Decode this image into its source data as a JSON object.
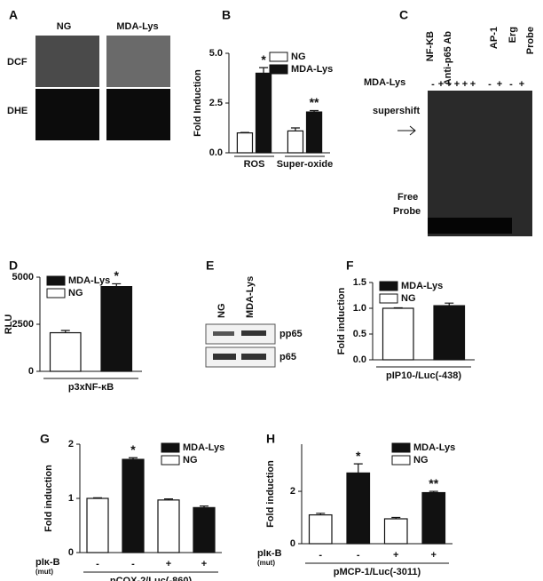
{
  "figures": {
    "A": {
      "panel": "A",
      "columns": [
        "NG",
        "MDA-Lys"
      ],
      "rows": [
        "DCF",
        "DHE"
      ]
    },
    "C": {
      "panel": "C",
      "row_label": "MDA-Lys",
      "lanes": [
        "NF-KB",
        "Anti-p65 Ab",
        "AP-1",
        "Erg",
        "Probe"
      ],
      "signs": [
        "-",
        "+",
        "+",
        "+",
        "+",
        "+",
        "-",
        "+",
        "-",
        "+"
      ],
      "bands": [
        "supershift",
        "Free",
        "Probe"
      ]
    },
    "E": {
      "panel": "E",
      "columns": [
        "NG",
        "MDA-Lys"
      ],
      "rows": [
        "pp65",
        "p65"
      ]
    }
  },
  "chart_data": [
    {
      "type": "bar",
      "panel": "B",
      "ylabel": "Fold Induction",
      "categories": [
        "ROS",
        "Super-oxide"
      ],
      "series": [
        {
          "name": "NG",
          "color": "#ffffff",
          "values": [
            1.0,
            1.1
          ],
          "errors": [
            0.02,
            0.15
          ],
          "annotations": [
            null,
            null
          ]
        },
        {
          "name": "MDA-Lys",
          "color": "#111111",
          "values": [
            4.0,
            2.05
          ],
          "errors": [
            0.28,
            0.07
          ],
          "annotations": [
            "*",
            "**"
          ]
        }
      ],
      "ylim": [
        0,
        5
      ],
      "yticks": [
        {
          "value": 0,
          "label": "0.0"
        },
        {
          "value": 2.5,
          "label": "2.5"
        },
        {
          "value": 5,
          "label": "5.0"
        }
      ],
      "legend": "upper right"
    },
    {
      "type": "bar",
      "panel": "D",
      "ylabel": "RLU",
      "xlabel": "p3xNF-κB",
      "categories": [
        null,
        null
      ],
      "series": [
        {
          "name": "MDA-Lys",
          "color": "#111111",
          "values": [
            null,
            4500
          ],
          "errors": [
            null,
            150
          ],
          "annotations": [
            null,
            "*"
          ]
        },
        {
          "name": "NG",
          "color": "#ffffff",
          "values": [
            2050,
            null
          ],
          "errors": [
            120,
            null
          ],
          "annotations": [
            null,
            null
          ]
        }
      ],
      "ylim": [
        0,
        5000
      ],
      "yticks": [
        0,
        2500,
        5000
      ],
      "legend": "upper left"
    },
    {
      "type": "bar",
      "panel": "F",
      "ylabel": "Fold induction",
      "xlabel": "pIP10-/Luc(-438)",
      "categories": [
        null,
        null
      ],
      "series": [
        {
          "name": "MDA-Lys",
          "color": "#111111",
          "values": [
            null,
            1.05
          ],
          "errors": [
            null,
            0.05
          ],
          "annotations": [
            null,
            null
          ]
        },
        {
          "name": "NG",
          "color": "#ffffff",
          "values": [
            1.0,
            null
          ],
          "errors": [
            0.01,
            null
          ],
          "annotations": [
            null,
            null
          ]
        }
      ],
      "ylim": [
        0,
        1.5
      ],
      "yticks": [
        {
          "value": 0,
          "label": "0.0"
        },
        {
          "value": 0.5,
          "label": "0.5"
        },
        {
          "value": 1,
          "label": "1.0"
        },
        {
          "value": 1.5,
          "label": "1.5"
        }
      ],
      "legend": "upper left"
    },
    {
      "type": "bar",
      "panel": "G",
      "ylabel": "Fold induction",
      "xlabel": "pCOX-2/Luc(-860)",
      "xrow_label": "pIκ-B",
      "xrow_sublabel": "(mut)",
      "categories": [
        "-",
        "-",
        "+",
        "+"
      ],
      "series": [
        {
          "name": "MDA-Lys",
          "color": "#111111",
          "values": [
            null,
            1.72,
            null,
            0.83
          ],
          "errors": [
            null,
            0.03,
            null,
            0.03
          ],
          "annotations": [
            null,
            "*",
            null,
            null
          ]
        },
        {
          "name": "NG",
          "color": "#ffffff",
          "values": [
            1.0,
            null,
            0.97,
            null
          ],
          "errors": [
            0.01,
            null,
            0.02,
            null
          ],
          "annotations": [
            null,
            null,
            null,
            null
          ]
        }
      ],
      "ylim": [
        0,
        2
      ],
      "yticks": [
        0,
        1,
        2
      ],
      "legend": "upper right"
    },
    {
      "type": "bar",
      "panel": "H",
      "ylabel": "Fold induction",
      "xlabel": "pMCP-1/Luc(-3011)",
      "xrow_label": "pIκ-B",
      "xrow_sublabel": "(mut)",
      "categories": [
        "-",
        "-",
        "+",
        "+"
      ],
      "series": [
        {
          "name": "MDA-Lys",
          "color": "#111111",
          "values": [
            null,
            2.7,
            null,
            1.95
          ],
          "errors": [
            null,
            0.35,
            null,
            0.05
          ],
          "annotations": [
            null,
            "*",
            null,
            "**"
          ]
        },
        {
          "name": "NG",
          "color": "#ffffff",
          "values": [
            1.1,
            null,
            0.95,
            null
          ],
          "errors": [
            0.06,
            null,
            0.05,
            null
          ],
          "annotations": [
            null,
            null,
            null,
            null
          ]
        }
      ],
      "ylim": [
        0,
        3.8
      ],
      "yticks": [
        0,
        2
      ],
      "legend": "upper right"
    }
  ]
}
